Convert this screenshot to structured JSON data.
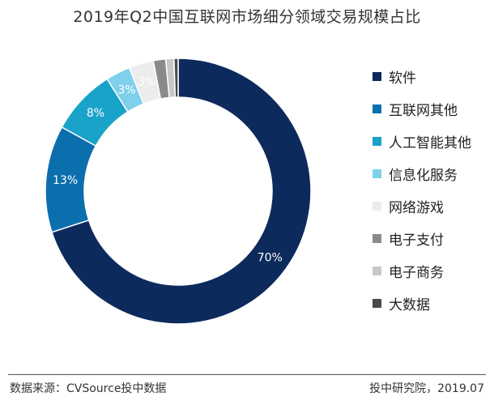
{
  "chart_data": {
    "type": "pie",
    "title": "2019年Q2中国互联网市场细分领域交易规模占比",
    "legend_position": "right",
    "donut": true,
    "slices": [
      {
        "label": "软件",
        "value": 70,
        "display": "70%",
        "color": "#0d2a5c"
      },
      {
        "label": "互联网其他",
        "value": 13,
        "display": "13%",
        "color": "#0b6fae"
      },
      {
        "label": "人工智能其他",
        "value": 8,
        "display": "8%",
        "color": "#1aa3c9"
      },
      {
        "label": "信息化服务",
        "value": 3,
        "display": "3%",
        "color": "#7fd0ea"
      },
      {
        "label": "网络游戏",
        "value": 3,
        "display": "3%",
        "color": "#ececec"
      },
      {
        "label": "电子支付",
        "value": 1.5,
        "display": "",
        "color": "#8a8a8a"
      },
      {
        "label": "电子商务",
        "value": 1,
        "display": "",
        "color": "#c8c8c8"
      },
      {
        "label": "大数据",
        "value": 0.5,
        "display": "",
        "color": "#4a4a4a"
      }
    ]
  },
  "footer": {
    "source": "数据来源：CVSource投中数据",
    "credit": "投中研究院，2019.07"
  }
}
